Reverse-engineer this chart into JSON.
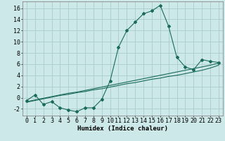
{
  "title": "",
  "xlabel": "Humidex (Indice chaleur)",
  "bg_color": "#cce8e8",
  "grid_color": "#aacccc",
  "line_color": "#1a6b5a",
  "xlim": [
    -0.5,
    23.5
  ],
  "ylim": [
    -3.2,
    17.2
  ],
  "x": [
    0,
    1,
    2,
    3,
    4,
    5,
    6,
    7,
    8,
    9,
    10,
    11,
    12,
    13,
    14,
    15,
    16,
    17,
    18,
    19,
    20,
    21,
    22,
    23
  ],
  "y_main": [
    -0.5,
    0.5,
    -1.2,
    -0.7,
    -1.8,
    -2.2,
    -2.5,
    -1.8,
    -1.8,
    -0.3,
    3.0,
    9.0,
    12.0,
    13.5,
    15.0,
    15.5,
    16.5,
    12.8,
    7.2,
    5.5,
    5.0,
    6.8,
    6.5,
    6.3
  ],
  "y_line2": [
    -0.7,
    -0.4,
    -0.1,
    0.2,
    0.5,
    0.8,
    1.0,
    1.3,
    1.6,
    1.9,
    2.2,
    2.5,
    2.8,
    3.1,
    3.4,
    3.7,
    4.0,
    4.3,
    4.6,
    4.9,
    5.2,
    5.5,
    5.8,
    6.2
  ],
  "y_line3": [
    -0.8,
    -0.5,
    -0.2,
    0.1,
    0.4,
    0.6,
    0.9,
    1.1,
    1.4,
    1.6,
    1.9,
    2.2,
    2.5,
    2.7,
    3.0,
    3.3,
    3.5,
    3.8,
    4.0,
    4.3,
    4.6,
    4.9,
    5.3,
    5.8
  ],
  "yticks": [
    -2,
    0,
    2,
    4,
    6,
    8,
    10,
    12,
    14,
    16
  ],
  "tick_fontsize": 6.0,
  "xlabel_fontsize": 6.5
}
